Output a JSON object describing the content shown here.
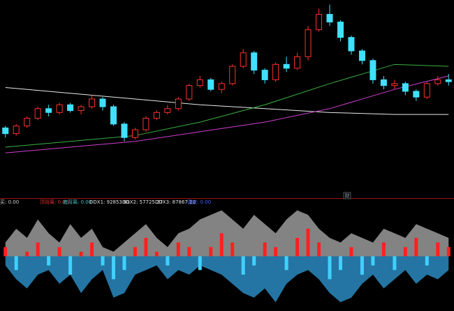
{
  "chart_data": {
    "type": "candlestick",
    "open": [
      35,
      32,
      36,
      40,
      45,
      43,
      47,
      44,
      46,
      50,
      46,
      37,
      30,
      34,
      40,
      43,
      45,
      50,
      57,
      60,
      55,
      58,
      67,
      74,
      65,
      60,
      68,
      66,
      72,
      86,
      94,
      90,
      82,
      75,
      70,
      60,
      57,
      58,
      54,
      51,
      58,
      60
    ],
    "close": [
      32,
      36,
      40,
      45,
      43,
      47,
      44,
      46,
      50,
      46,
      37,
      30,
      34,
      40,
      43,
      45,
      50,
      57,
      60,
      55,
      58,
      67,
      74,
      65,
      60,
      68,
      66,
      72,
      86,
      94,
      90,
      82,
      75,
      70,
      60,
      57,
      58,
      54,
      51,
      58,
      60,
      59
    ],
    "high": [
      36,
      37,
      41,
      46,
      47,
      48,
      48,
      47,
      52,
      51,
      47,
      38,
      35,
      41,
      44,
      47,
      51,
      58,
      62,
      61,
      59,
      68,
      76,
      75,
      66,
      69,
      72,
      74,
      88,
      97,
      99,
      91,
      83,
      76,
      71,
      62,
      60,
      59,
      55,
      59,
      62,
      63
    ],
    "low": [
      30,
      31,
      35,
      39,
      41,
      42,
      43,
      42,
      45,
      44,
      36,
      28,
      29,
      33,
      39,
      42,
      44,
      49,
      56,
      54,
      53,
      57,
      66,
      63,
      58,
      59,
      64,
      65,
      70,
      85,
      88,
      80,
      73,
      68,
      58,
      55,
      55,
      52,
      49,
      50,
      57,
      57
    ],
    "ylim": [
      0,
      100
    ],
    "lines": [
      {
        "color": "#e8e8e8",
        "x": [
          0,
          6,
          12,
          18,
          24,
          30,
          36,
          41
        ],
        "values": [
          56,
          53,
          50,
          47,
          45,
          43,
          42,
          42
        ]
      },
      {
        "color": "#3cb043",
        "x": [
          0,
          6,
          12,
          18,
          24,
          30,
          36,
          41
        ],
        "values": [
          25,
          28,
          31,
          38,
          47,
          58,
          68,
          67
        ]
      },
      {
        "color": "#d040d0",
        "x": [
          0,
          6,
          12,
          18,
          24,
          30,
          36,
          41
        ],
        "values": [
          22,
          25,
          28,
          33,
          38,
          45,
          55,
          62
        ]
      }
    ],
    "indicator": {
      "header": [
        "买: 0.00",
        "顶背离: 0.00",
        "底背离: 0.00",
        "DDX1: 92853.61",
        "DDX2: 57725.27",
        "DDX3: 87867.20",
        "强度: 0.00"
      ],
      "header_colors": [
        "#cccccc",
        "#e03030",
        "#40c0c0",
        "#e0e0e0",
        "#e0e0e0",
        "#e0e0e0",
        "#4060ff"
      ],
      "tag": "财",
      "bars": [
        2,
        -3,
        1,
        3,
        -2,
        2,
        -4,
        1,
        3,
        -2,
        -5,
        -3,
        2,
        4,
        1,
        -2,
        3,
        2,
        -3,
        2,
        5,
        3,
        -4,
        -2,
        3,
        2,
        -3,
        4,
        6,
        3,
        -5,
        -3,
        2,
        -4,
        -2,
        3,
        -3,
        2,
        4,
        -2,
        3,
        2
      ],
      "upper": [
        3,
        6,
        4,
        8,
        5,
        3,
        7,
        4,
        6,
        2,
        1,
        3,
        5,
        7,
        4,
        2,
        5,
        6,
        8,
        9,
        10,
        8,
        6,
        9,
        7,
        5,
        8,
        10,
        9,
        6,
        4,
        3,
        5,
        4,
        3,
        6,
        5,
        4,
        7,
        6,
        5,
        4
      ],
      "lower": [
        -2,
        -5,
        -7,
        -4,
        -3,
        -6,
        -4,
        -8,
        -5,
        -3,
        -9,
        -8,
        -4,
        -3,
        -2,
        -5,
        -3,
        -4,
        -2,
        -3,
        -4,
        -6,
        -8,
        -9,
        -7,
        -10,
        -6,
        -4,
        -3,
        -5,
        -8,
        -10,
        -9,
        -6,
        -4,
        -7,
        -5,
        -3,
        -6,
        -4,
        -5,
        -3
      ],
      "ylim": [
        -11,
        11
      ]
    }
  }
}
